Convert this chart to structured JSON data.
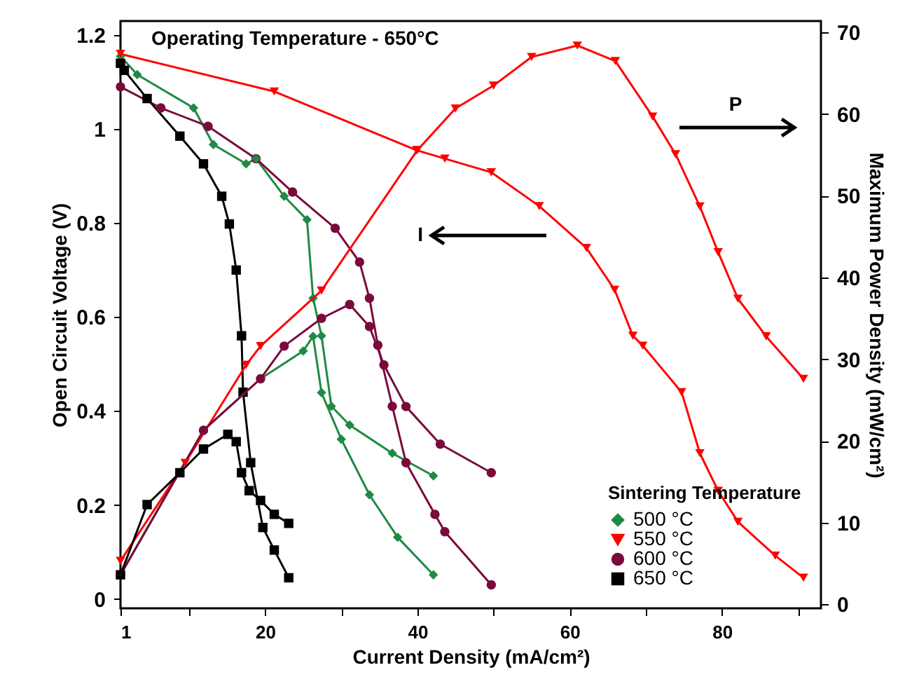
{
  "chart_data": {
    "type": "line",
    "xlabel": "Current Density (mA/cm²)",
    "ylabel": "Open Circuit Voltage (V)",
    "y2label": "Maximum Power Density (mW/cm²)",
    "legend_title": "Sintering Temperature",
    "legend": "bottom right",
    "grid": false,
    "xlim": [
      1,
      93
    ],
    "xticks": [
      1,
      {
        "value": 10,
        "label": null
      },
      20,
      {
        "value": 30,
        "label": null
      },
      40,
      {
        "value": 50,
        "label": null
      },
      60,
      {
        "value": 70,
        "label": null
      },
      80,
      {
        "value": 90,
        "label": null
      }
    ],
    "ylim": [
      -0.02,
      1.23
    ],
    "yticks": [
      0,
      0.2,
      0.4,
      0.6,
      0.8,
      1,
      1.2
    ],
    "y2lim": [
      -0.5,
      71.4
    ],
    "y2ticks": [
      0,
      10,
      20,
      30,
      40,
      50,
      60,
      70
    ],
    "annotations": [
      "Operating Temperature - 650°C",
      "I",
      "P"
    ],
    "series": [
      {
        "name": "500 °C",
        "color": "#1e8a44",
        "marker": "diamond",
        "x": [
          1,
          3.2,
          10.6,
          13.2,
          17.5,
          18.8,
          22.5,
          25.5,
          26.3,
          27.4,
          28.7,
          31.1,
          36.7,
          42.1
        ],
        "values": [
          1.155,
          1.116,
          1.045,
          0.967,
          0.926,
          0.937,
          0.857,
          0.807,
          0.64,
          0.56,
          0.41,
          0.37,
          0.31,
          0.262
        ]
      },
      {
        "name": "550 °C",
        "color": "#ff0000",
        "marker": "triangle",
        "x": [
          1,
          21.2,
          39.9,
          43.6,
          49.7,
          56,
          62.2,
          65.9,
          68.3,
          69.6,
          74.7,
          77.1,
          79.5,
          82.1,
          87,
          90.7
        ],
        "values": [
          1.16,
          1.08,
          0.955,
          0.937,
          0.908,
          0.836,
          0.747,
          0.658,
          0.56,
          0.539,
          0.44,
          0.31,
          0.23,
          0.164,
          0.092,
          0.045
        ]
      },
      {
        "name": "600 °C",
        "color": "#7a0a3c",
        "marker": "circle",
        "x": [
          1,
          6.3,
          12.5,
          18.8,
          23.6,
          29.2,
          32.4,
          33.7,
          34.8,
          36.7,
          38.5,
          42.3,
          43.6,
          49.7
        ],
        "values": [
          1.09,
          1.045,
          1.006,
          0.937,
          0.866,
          0.789,
          0.717,
          0.64,
          0.54,
          0.41,
          0.29,
          0.18,
          0.143,
          0.03
        ]
      },
      {
        "name": "650 °C",
        "color": "#000000",
        "marker": "square",
        "x": [
          1,
          1.5,
          4.5,
          8.8,
          11.9,
          14.3,
          15.3,
          16.2,
          16.9,
          17.1,
          18.1,
          19.7,
          21.2,
          23.1
        ],
        "values": [
          1.14,
          1.125,
          1.065,
          0.985,
          0.926,
          0.857,
          0.798,
          0.7,
          0.56,
          0.44,
          0.29,
          0.152,
          0.104,
          0.045
        ]
      },
      {
        "color": "#1e8a44",
        "marker": "diamond",
        "axis": "y2",
        "x": [
          1,
          11.9,
          19.4,
          25,
          26.3,
          27.4,
          30,
          33.7,
          37.4,
          42.1
        ],
        "values": [
          3.6,
          21.3,
          27.6,
          31,
          32.8,
          25.9,
          20.2,
          13.4,
          8.2,
          3.6
        ]
      },
      {
        "color": "#ff0000",
        "marker": "triangle",
        "axis": "y2",
        "x": [
          1,
          9.5,
          17.5,
          19.4,
          27.4,
          40,
          45,
          50,
          55,
          61,
          66,
          70.9,
          73.9,
          77.1,
          79.5,
          82.1,
          85.8,
          90.7
        ],
        "values": [
          5.3,
          17.3,
          29.3,
          31.6,
          38.4,
          55.6,
          60.7,
          63.5,
          67,
          68.4,
          66.5,
          59.7,
          55.1,
          48.7,
          43.1,
          37.4,
          32.8,
          27.6
        ]
      },
      {
        "color": "#7a0a3c",
        "marker": "circle",
        "axis": "y2",
        "x": [
          1,
          11.9,
          19.4,
          22.5,
          27.4,
          31.1,
          33.7,
          35.6,
          38.5,
          43,
          49.7
        ],
        "values": [
          3.6,
          21.3,
          27.6,
          31.6,
          35,
          36.7,
          34,
          29.3,
          24.2,
          19.6,
          16.1
        ]
      },
      {
        "color": "#000000",
        "marker": "square",
        "axis": "y2",
        "x": [
          1,
          4.5,
          8.8,
          11.9,
          15.1,
          16.2,
          16.9,
          17.9,
          19.4,
          21.2,
          23.1
        ],
        "values": [
          3.6,
          12.2,
          16.1,
          19,
          20.8,
          19.9,
          16.1,
          13.9,
          12.7,
          11,
          9.9
        ]
      }
    ]
  }
}
